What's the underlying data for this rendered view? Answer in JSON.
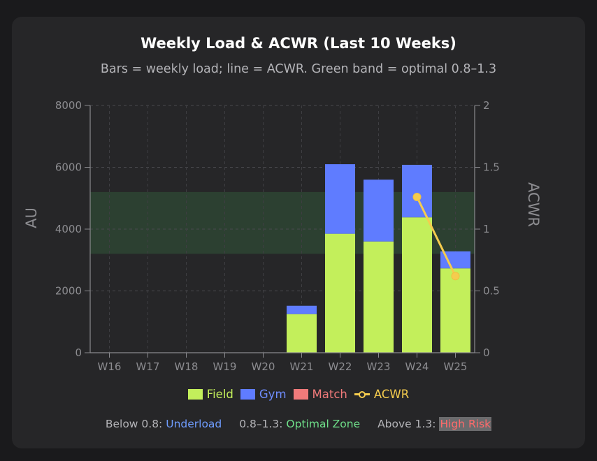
{
  "chart_data": {
    "type": "bar",
    "title": "Weekly Load & ACWR (Last 10 Weeks)",
    "subtitle": "Bars = weekly load; line = ACWR. Green band = optimal 0.8–1.3",
    "categories": [
      "W16",
      "W17",
      "W18",
      "W19",
      "W20",
      "W21",
      "W22",
      "W23",
      "W24",
      "W25"
    ],
    "stacked": true,
    "series": [
      {
        "name": "Field",
        "color": "#c3ef5b",
        "values": [
          0,
          0,
          0,
          0,
          0,
          1250,
          3850,
          3600,
          4380,
          2730
        ]
      },
      {
        "name": "Gym",
        "color": "#5f7cff",
        "values": [
          0,
          0,
          0,
          0,
          0,
          270,
          2250,
          2000,
          1700,
          550
        ]
      },
      {
        "name": "Match",
        "color": "#f07a7a",
        "values": [
          0,
          0,
          0,
          0,
          0,
          0,
          0,
          0,
          0,
          0
        ]
      }
    ],
    "line_series": {
      "name": "ACWR",
      "color": "#f5cc4e",
      "values": [
        null,
        null,
        null,
        null,
        null,
        null,
        null,
        null,
        1.26,
        0.62
      ]
    },
    "ylabel": "AU",
    "ylim": [
      0,
      8000
    ],
    "yticks": [
      "0",
      "2000",
      "4000",
      "6000",
      "8000"
    ],
    "y2label": "ACWR",
    "y2lim": [
      0,
      2
    ],
    "y2ticks": [
      "0",
      "0.5",
      "1",
      "1.5",
      "2"
    ],
    "optimal_band": {
      "low": 0.8,
      "high": 1.3,
      "color": "#2f4a34"
    },
    "grid": true
  },
  "legend": {
    "field": "Field",
    "gym": "Gym",
    "match": "Match",
    "acwr": "ACWR"
  },
  "zones": {
    "under_prefix": "Below 0.8:",
    "under_label": "Underload",
    "optimal_prefix": "0.8–1.3:",
    "optimal_label": "Optimal Zone",
    "high_prefix": "Above 1.3:",
    "high_label": "High Risk"
  }
}
